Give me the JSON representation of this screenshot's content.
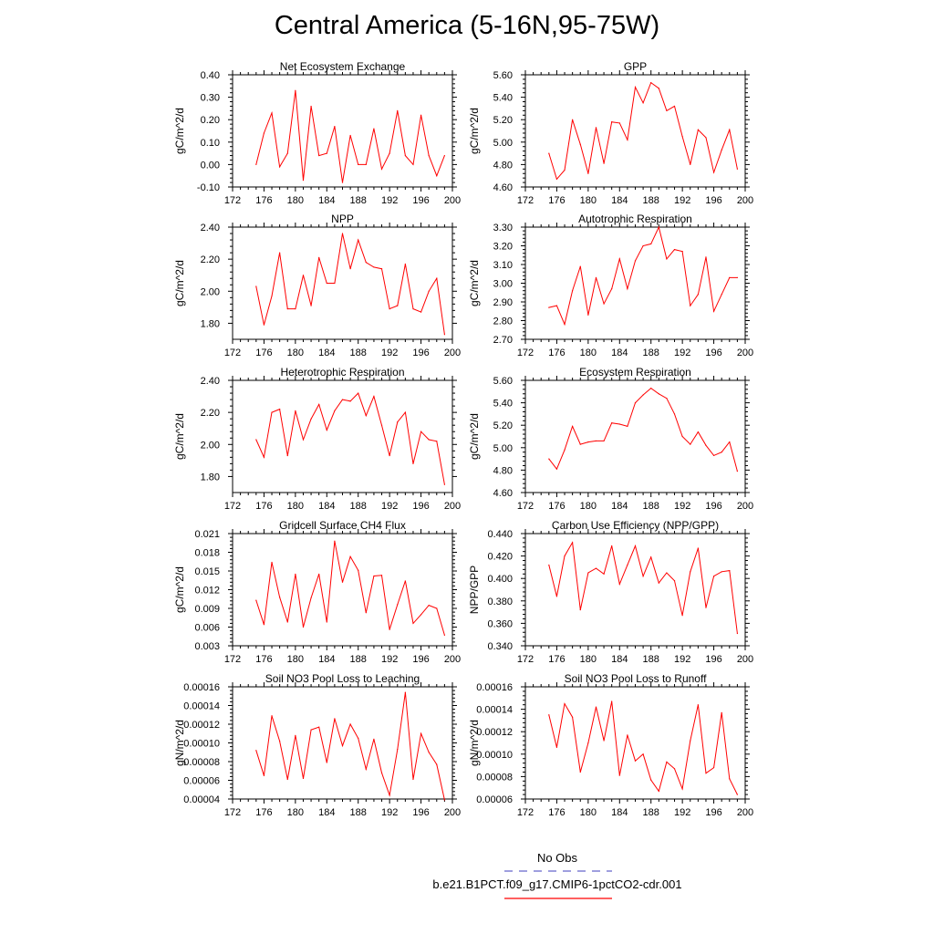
{
  "title": "Central America (5-16N,95-75W)",
  "colors": {
    "series": "#ff0000",
    "obs": "#6666cc",
    "axis": "#000000"
  },
  "legend": {
    "items": [
      {
        "label": "No Obs",
        "style": "dashed",
        "color": "#6666cc"
      },
      {
        "label": "b.e21.B1PCT.f09_g17.CMIP6-1pctCO2-cdr.001",
        "style": "solid",
        "color": "#ff0000"
      }
    ]
  },
  "chart_data": [
    {
      "type": "line",
      "title": "Net Ecosystem Exchange",
      "ylabel": "gC/m^2/d",
      "xlim": [
        172,
        200
      ],
      "ylim": [
        -0.1,
        0.4
      ],
      "xticks": [
        172,
        176,
        180,
        184,
        188,
        192,
        196,
        200
      ],
      "xtick_labels": [
        "172",
        "176",
        "180",
        "184",
        "188",
        "192",
        "196",
        "200"
      ],
      "yticks": [
        -0.1,
        0.0,
        0.1,
        0.2,
        0.3,
        0.4
      ],
      "ytick_labels": [
        "-0.10",
        "0.00",
        "0.10",
        "0.20",
        "0.30",
        "0.40"
      ],
      "x": [
        175,
        176,
        177,
        178,
        179,
        180,
        181,
        182,
        183,
        184,
        185,
        186,
        187,
        188,
        189,
        190,
        191,
        192,
        193,
        194,
        195,
        196,
        197,
        198,
        199
      ],
      "values": [
        0.0,
        0.14,
        0.23,
        -0.01,
        0.05,
        0.33,
        -0.07,
        0.26,
        0.04,
        0.05,
        0.17,
        -0.08,
        0.13,
        0.0,
        0.0,
        0.16,
        -0.02,
        0.05,
        0.24,
        0.04,
        0.0,
        0.22,
        0.04,
        -0.05,
        0.04
      ]
    },
    {
      "type": "line",
      "title": "GPP",
      "ylabel": "gC/m^2/d",
      "xlim": [
        172,
        200
      ],
      "ylim": [
        4.6,
        5.6
      ],
      "xticks": [
        172,
        176,
        180,
        184,
        188,
        192,
        196,
        200
      ],
      "xtick_labels": [
        "172",
        "176",
        "180",
        "184",
        "188",
        "192",
        "196",
        "200"
      ],
      "yticks": [
        4.6,
        4.8,
        5.0,
        5.2,
        5.4,
        5.6
      ],
      "ytick_labels": [
        "4.60",
        "4.80",
        "5.00",
        "5.20",
        "5.40",
        "5.60"
      ],
      "x": [
        175,
        176,
        177,
        178,
        179,
        180,
        181,
        182,
        183,
        184,
        185,
        186,
        187,
        188,
        189,
        190,
        191,
        192,
        193,
        194,
        195,
        196,
        197,
        198,
        199
      ],
      "values": [
        4.9,
        4.67,
        4.75,
        5.2,
        4.98,
        4.72,
        5.13,
        4.81,
        5.18,
        5.17,
        5.02,
        5.49,
        5.35,
        5.53,
        5.48,
        5.28,
        5.32,
        5.05,
        4.8,
        5.11,
        5.04,
        4.73,
        4.93,
        5.11,
        4.76
      ]
    },
    {
      "type": "line",
      "title": "NPP",
      "ylabel": "gC/m^2/d",
      "xlim": [
        172,
        200
      ],
      "ylim": [
        1.7,
        2.4
      ],
      "xticks": [
        172,
        176,
        180,
        184,
        188,
        192,
        196,
        200
      ],
      "xtick_labels": [
        "172",
        "176",
        "180",
        "184",
        "188",
        "192",
        "196",
        "200"
      ],
      "yticks": [
        1.8,
        2.0,
        2.2,
        2.4
      ],
      "ytick_labels": [
        "1.80",
        "2.00",
        "2.20",
        "2.40"
      ],
      "x": [
        175,
        176,
        177,
        178,
        179,
        180,
        181,
        182,
        183,
        184,
        185,
        186,
        187,
        188,
        189,
        190,
        191,
        192,
        193,
        194,
        195,
        196,
        197,
        198,
        199
      ],
      "values": [
        2.03,
        1.79,
        1.97,
        2.24,
        1.89,
        1.89,
        2.1,
        1.91,
        2.21,
        2.05,
        2.05,
        2.36,
        2.14,
        2.32,
        2.18,
        2.15,
        2.14,
        1.89,
        1.91,
        2.17,
        1.89,
        1.87,
        2.0,
        2.08,
        1.73
      ]
    },
    {
      "type": "line",
      "title": "Autotrophic Respiration",
      "ylabel": "gC/m^2/d",
      "xlim": [
        172,
        200
      ],
      "ylim": [
        2.7,
        3.3
      ],
      "xticks": [
        172,
        176,
        180,
        184,
        188,
        192,
        196,
        200
      ],
      "xtick_labels": [
        "172",
        "176",
        "180",
        "184",
        "188",
        "192",
        "196",
        "200"
      ],
      "yticks": [
        2.7,
        2.8,
        2.9,
        3.0,
        3.1,
        3.2,
        3.3
      ],
      "ytick_labels": [
        "2.70",
        "2.80",
        "2.90",
        "3.00",
        "3.10",
        "3.20",
        "3.30"
      ],
      "x": [
        175,
        176,
        177,
        178,
        179,
        180,
        181,
        182,
        183,
        184,
        185,
        186,
        187,
        188,
        189,
        190,
        191,
        192,
        193,
        194,
        195,
        196,
        197,
        198,
        199
      ],
      "values": [
        2.87,
        2.88,
        2.78,
        2.96,
        3.09,
        2.83,
        3.03,
        2.89,
        2.97,
        3.13,
        2.97,
        3.12,
        3.2,
        3.21,
        3.3,
        3.13,
        3.18,
        3.17,
        2.88,
        2.94,
        3.14,
        2.85,
        2.94,
        3.03,
        3.03
      ]
    },
    {
      "type": "line",
      "title": "Heterotrophic Respiration",
      "ylabel": "gC/m^2/d",
      "xlim": [
        172,
        200
      ],
      "ylim": [
        1.7,
        2.4
      ],
      "xticks": [
        172,
        176,
        180,
        184,
        188,
        192,
        196,
        200
      ],
      "xtick_labels": [
        "172",
        "176",
        "180",
        "184",
        "188",
        "192",
        "196",
        "200"
      ],
      "yticks": [
        1.8,
        2.0,
        2.2,
        2.4
      ],
      "ytick_labels": [
        "1.80",
        "2.00",
        "2.20",
        "2.40"
      ],
      "x": [
        175,
        176,
        177,
        178,
        179,
        180,
        181,
        182,
        183,
        184,
        185,
        186,
        187,
        188,
        189,
        190,
        191,
        192,
        193,
        194,
        195,
        196,
        197,
        198,
        199
      ],
      "values": [
        2.03,
        1.92,
        2.2,
        2.22,
        1.93,
        2.21,
        2.03,
        2.16,
        2.25,
        2.09,
        2.21,
        2.28,
        2.27,
        2.32,
        2.18,
        2.3,
        2.12,
        1.93,
        2.14,
        2.2,
        1.88,
        2.08,
        2.03,
        2.02,
        1.75
      ]
    },
    {
      "type": "line",
      "title": "Ecosystem Respiration",
      "ylabel": "gC/m^2/d",
      "xlim": [
        172,
        200
      ],
      "ylim": [
        4.6,
        5.6
      ],
      "xticks": [
        172,
        176,
        180,
        184,
        188,
        192,
        196,
        200
      ],
      "xtick_labels": [
        "172",
        "176",
        "180",
        "184",
        "188",
        "192",
        "196",
        "200"
      ],
      "yticks": [
        4.6,
        4.8,
        5.0,
        5.2,
        5.4,
        5.6
      ],
      "ytick_labels": [
        "4.60",
        "4.80",
        "5.00",
        "5.20",
        "5.40",
        "5.60"
      ],
      "x": [
        175,
        176,
        177,
        178,
        179,
        180,
        181,
        182,
        183,
        184,
        185,
        186,
        187,
        188,
        189,
        190,
        191,
        192,
        193,
        194,
        195,
        196,
        197,
        198,
        199
      ],
      "values": [
        4.9,
        4.81,
        4.98,
        5.19,
        5.03,
        5.05,
        5.06,
        5.06,
        5.22,
        5.21,
        5.19,
        5.4,
        5.47,
        5.53,
        5.48,
        5.44,
        5.3,
        5.1,
        5.03,
        5.14,
        5.02,
        4.93,
        4.96,
        5.05,
        4.79
      ]
    },
    {
      "type": "line",
      "title": "Gridcell Surface CH4 Flux",
      "ylabel": "gC/m^2/d",
      "xlim": [
        172,
        200
      ],
      "ylim": [
        0.003,
        0.021
      ],
      "xticks": [
        172,
        176,
        180,
        184,
        188,
        192,
        196,
        200
      ],
      "xtick_labels": [
        "172",
        "176",
        "180",
        "184",
        "188",
        "192",
        "196",
        "200"
      ],
      "yticks": [
        0.003,
        0.006,
        0.009,
        0.012,
        0.015,
        0.018,
        0.021
      ],
      "ytick_labels": [
        "0.003",
        "0.006",
        "0.009",
        "0.012",
        "0.015",
        "0.018",
        "0.021"
      ],
      "x": [
        175,
        176,
        177,
        178,
        179,
        180,
        181,
        182,
        183,
        184,
        185,
        186,
        187,
        188,
        189,
        190,
        191,
        192,
        193,
        194,
        195,
        196,
        197,
        198,
        199
      ],
      "values": [
        0.0103,
        0.0064,
        0.0164,
        0.0108,
        0.0068,
        0.0145,
        0.006,
        0.0107,
        0.0145,
        0.0068,
        0.0198,
        0.0132,
        0.0173,
        0.0151,
        0.0083,
        0.0142,
        0.0143,
        0.0056,
        0.0096,
        0.0134,
        0.0066,
        0.008,
        0.0095,
        0.009,
        0.0047
      ]
    },
    {
      "type": "line",
      "title": "Carbon Use Efficiency (NPP/GPP)",
      "ylabel": "NPP/GPP",
      "xlim": [
        172,
        200
      ],
      "ylim": [
        0.34,
        0.44
      ],
      "xticks": [
        172,
        176,
        180,
        184,
        188,
        192,
        196,
        200
      ],
      "xtick_labels": [
        "172",
        "176",
        "180",
        "184",
        "188",
        "192",
        "196",
        "200"
      ],
      "yticks": [
        0.34,
        0.36,
        0.38,
        0.4,
        0.42,
        0.44
      ],
      "ytick_labels": [
        "0.340",
        "0.360",
        "0.380",
        "0.400",
        "0.420",
        "0.440"
      ],
      "x": [
        175,
        176,
        177,
        178,
        179,
        180,
        181,
        182,
        183,
        184,
        185,
        186,
        187,
        188,
        189,
        190,
        191,
        192,
        193,
        194,
        195,
        196,
        197,
        198,
        199
      ],
      "values": [
        0.412,
        0.384,
        0.42,
        0.432,
        0.372,
        0.405,
        0.409,
        0.404,
        0.429,
        0.395,
        0.412,
        0.429,
        0.402,
        0.419,
        0.396,
        0.405,
        0.398,
        0.367,
        0.406,
        0.427,
        0.374,
        0.402,
        0.406,
        0.407,
        0.351
      ]
    },
    {
      "type": "line",
      "title": "Soil NO3 Pool Loss to Leaching",
      "ylabel": "gN/m^2/d",
      "xlim": [
        172,
        200
      ],
      "ylim": [
        4e-05,
        0.00016
      ],
      "xticks": [
        172,
        176,
        180,
        184,
        188,
        192,
        196,
        200
      ],
      "xtick_labels": [
        "172",
        "176",
        "180",
        "184",
        "188",
        "192",
        "196",
        "200"
      ],
      "yticks": [
        4e-05,
        6e-05,
        8e-05,
        0.0001,
        0.00012,
        0.00014,
        0.00016
      ],
      "ytick_labels": [
        "0.00004",
        "0.00006",
        "0.00008",
        "0.00010",
        "0.00012",
        "0.00014",
        "0.00016"
      ],
      "x": [
        175,
        176,
        177,
        178,
        179,
        180,
        181,
        182,
        183,
        184,
        185,
        186,
        187,
        188,
        189,
        190,
        191,
        192,
        193,
        194,
        195,
        196,
        197,
        198,
        199
      ],
      "values": [
        9.2e-05,
        6.5e-05,
        0.000129,
        0.000102,
        6.1e-05,
        0.000108,
        6.2e-05,
        0.000114,
        0.000117,
        7.9e-05,
        0.000126,
        9.7e-05,
        0.00012,
        0.000105,
        7.2e-05,
        0.000104,
        6.8e-05,
        4.4e-05,
        9.3e-05,
        0.000154,
        6.1e-05,
        0.00011,
        9e-05,
        7.7e-05,
        3.9e-05
      ]
    },
    {
      "type": "line",
      "title": "Soil NO3 Pool Loss to Runoff",
      "ylabel": "gN/m^2/d",
      "xlim": [
        172,
        200
      ],
      "ylim": [
        6e-05,
        0.00016
      ],
      "xticks": [
        172,
        176,
        180,
        184,
        188,
        192,
        196,
        200
      ],
      "xtick_labels": [
        "172",
        "176",
        "180",
        "184",
        "188",
        "192",
        "196",
        "200"
      ],
      "yticks": [
        6e-05,
        8e-05,
        0.0001,
        0.00012,
        0.00014,
        0.00016
      ],
      "ytick_labels": [
        "0.00006",
        "0.00008",
        "0.00010",
        "0.00012",
        "0.00014",
        "0.00016"
      ],
      "x": [
        175,
        176,
        177,
        178,
        179,
        180,
        181,
        182,
        183,
        184,
        185,
        186,
        187,
        188,
        189,
        190,
        191,
        192,
        193,
        194,
        195,
        196,
        197,
        198,
        199
      ],
      "values": [
        0.000135,
        0.000106,
        0.000145,
        0.000133,
        8.4e-05,
        0.00011,
        0.000142,
        0.000112,
        0.000147,
        8.1e-05,
        0.000117,
        9.4e-05,
        0.0001,
        7.7e-05,
        6.7e-05,
        9.3e-05,
        8.7e-05,
        6.9e-05,
        0.000112,
        0.000144,
        8.3e-05,
        8.8e-05,
        0.000137,
        7.8e-05,
        6.4e-05
      ]
    }
  ]
}
